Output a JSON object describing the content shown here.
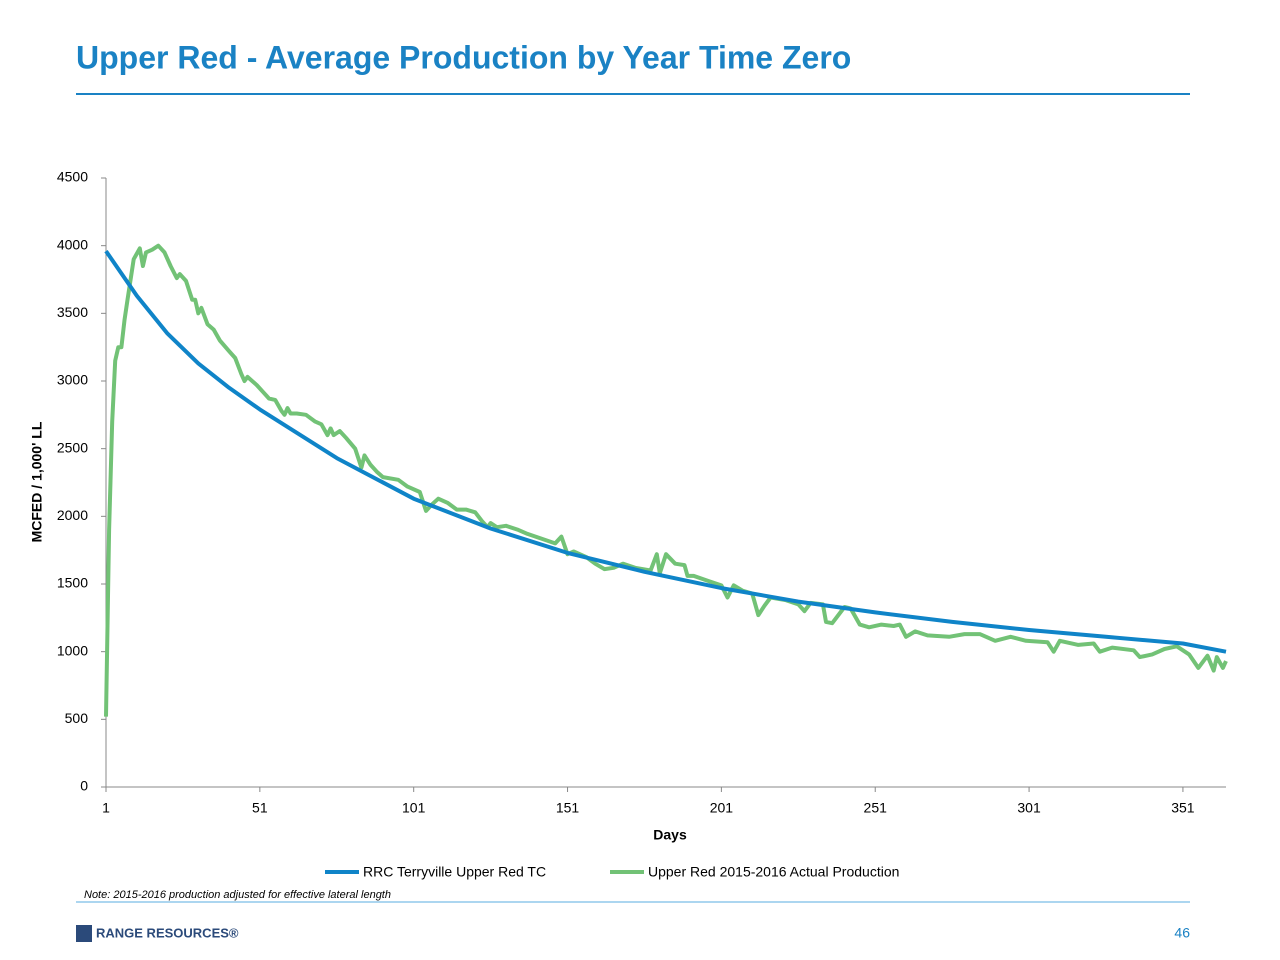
{
  "chart_data": {
    "type": "line",
    "title": "Upper Red - Average Production by Year Time Zero",
    "x_label": "Days",
    "y_label": "MCFED / 1,000' LL",
    "xlim": [
      1,
      365
    ],
    "xticks": [
      1,
      51,
      101,
      151,
      201,
      251,
      301,
      351
    ],
    "ylim": [
      0,
      4500
    ],
    "yticks": [
      0,
      500,
      1000,
      1500,
      2000,
      2500,
      3000,
      3500,
      4000,
      4500
    ],
    "legend": "bottom",
    "series": [
      {
        "name": "RRC Terryville Upper Red TC",
        "color": "#0f84c8",
        "x": [
          1,
          11,
          21,
          31,
          41,
          51,
          76,
          101,
          126,
          151,
          176,
          201,
          226,
          251,
          276,
          301,
          326,
          351,
          365
        ],
        "values": [
          3960,
          3630,
          3350,
          3130,
          2950,
          2790,
          2430,
          2130,
          1910,
          1730,
          1590,
          1470,
          1370,
          1290,
          1220,
          1160,
          1110,
          1060,
          1000
        ]
      },
      {
        "name": "Upper Red 2015-2016 Actual Production",
        "color": "#72c276",
        "x": [
          1,
          2,
          3,
          4,
          5,
          6,
          7,
          8,
          10,
          12,
          13,
          14,
          16,
          18,
          20,
          22,
          24,
          25,
          27,
          29,
          30,
          31,
          32,
          34,
          36,
          38,
          41,
          43,
          45,
          46,
          47,
          50,
          52,
          54,
          56,
          58,
          59,
          60,
          61,
          63,
          66,
          69,
          71,
          73,
          74,
          75,
          77,
          79,
          82,
          83,
          84,
          85,
          87,
          89,
          91,
          96,
          99,
          103,
          105,
          107,
          109,
          112,
          115,
          118,
          121,
          123,
          125,
          126,
          128,
          131,
          135,
          138,
          147,
          149,
          151,
          153,
          157,
          160,
          163,
          166,
          169,
          173,
          178,
          180,
          181,
          183,
          186,
          189,
          190,
          192,
          197,
          201,
          203,
          205,
          208,
          211,
          213,
          215,
          217,
          222,
          226,
          228,
          230,
          234,
          235,
          237,
          241,
          243,
          246,
          249,
          253,
          257,
          259,
          261,
          264,
          268,
          275,
          280,
          285,
          290,
          295,
          300,
          307,
          309,
          311,
          317,
          322,
          324,
          328,
          335,
          337,
          341,
          345,
          349,
          353,
          356,
          359,
          361,
          362,
          364,
          365
        ],
        "values": [
          520,
          1900,
          2700,
          3150,
          3250,
          3250,
          3450,
          3600,
          3900,
          3980,
          3850,
          3950,
          3970,
          4000,
          3950,
          3850,
          3760,
          3790,
          3740,
          3600,
          3600,
          3500,
          3540,
          3420,
          3380,
          3300,
          3220,
          3170,
          3050,
          3000,
          3030,
          2970,
          2920,
          2870,
          2860,
          2780,
          2750,
          2800,
          2760,
          2760,
          2750,
          2700,
          2680,
          2600,
          2650,
          2600,
          2630,
          2580,
          2500,
          2430,
          2360,
          2450,
          2380,
          2330,
          2290,
          2270,
          2220,
          2180,
          2040,
          2090,
          2130,
          2100,
          2050,
          2050,
          2030,
          1970,
          1920,
          1950,
          1920,
          1930,
          1900,
          1870,
          1800,
          1850,
          1720,
          1740,
          1700,
          1650,
          1610,
          1620,
          1650,
          1620,
          1600,
          1720,
          1580,
          1720,
          1650,
          1640,
          1560,
          1560,
          1520,
          1490,
          1400,
          1490,
          1450,
          1430,
          1270,
          1340,
          1400,
          1380,
          1350,
          1300,
          1360,
          1350,
          1220,
          1210,
          1330,
          1320,
          1200,
          1180,
          1200,
          1190,
          1200,
          1110,
          1150,
          1120,
          1110,
          1130,
          1130,
          1080,
          1110,
          1080,
          1070,
          1000,
          1080,
          1050,
          1060,
          1000,
          1030,
          1010,
          960,
          980,
          1020,
          1040,
          980,
          880,
          970,
          860,
          960,
          880,
          930
        ]
      }
    ]
  },
  "note": "Note: 2015-2016 production adjusted for effective lateral length",
  "logo": "RANGE RESOURCES®",
  "page_number": "46"
}
